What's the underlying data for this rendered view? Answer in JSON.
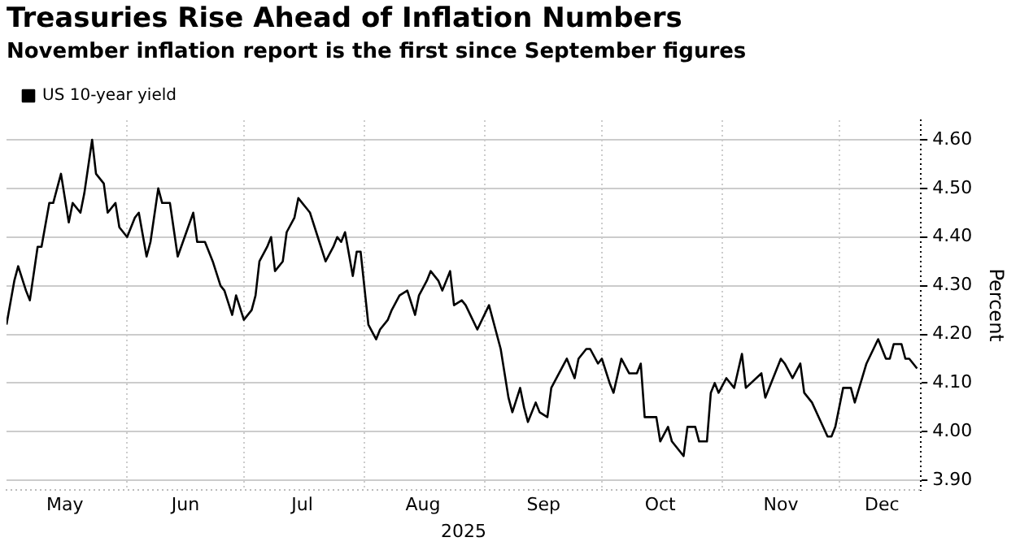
{
  "chart_data": {
    "type": "line",
    "title": "Treasuries Rise Ahead of Inflation Numbers",
    "subtitle": "November inflation report is the first since September figures",
    "xlabel": "2025",
    "ylabel": "Percent",
    "x": [
      "2025-05-01",
      "2025-05-03",
      "2025-05-04",
      "2025-05-06",
      "2025-05-07",
      "2025-05-09",
      "2025-05-10",
      "2025-05-12",
      "2025-05-13",
      "2025-05-15",
      "2025-05-17",
      "2025-05-18",
      "2025-05-20",
      "2025-05-21",
      "2025-05-23",
      "2025-05-24",
      "2025-05-26",
      "2025-05-27",
      "2025-05-29",
      "2025-05-30",
      "2025-06-01",
      "2025-06-03",
      "2025-06-04",
      "2025-06-06",
      "2025-06-07",
      "2025-06-09",
      "2025-06-10",
      "2025-06-12",
      "2025-06-14",
      "2025-06-18",
      "2025-06-19",
      "2025-06-21",
      "2025-06-23",
      "2025-06-25",
      "2025-06-26",
      "2025-06-28",
      "2025-06-29",
      "2025-07-01",
      "2025-07-03",
      "2025-07-04",
      "2025-07-05",
      "2025-07-07",
      "2025-07-08",
      "2025-07-09",
      "2025-07-11",
      "2025-07-12",
      "2025-07-14",
      "2025-07-15",
      "2025-07-17",
      "2025-07-18",
      "2025-07-20",
      "2025-07-22",
      "2025-07-24",
      "2025-07-25",
      "2025-07-26",
      "2025-07-27",
      "2025-07-29",
      "2025-07-30",
      "2025-07-31",
      "2025-08-02",
      "2025-08-04",
      "2025-08-05",
      "2025-08-07",
      "2025-08-08",
      "2025-08-10",
      "2025-08-12",
      "2025-08-14",
      "2025-08-15",
      "2025-08-17",
      "2025-08-18",
      "2025-08-20",
      "2025-08-21",
      "2025-08-23",
      "2025-08-24",
      "2025-08-26",
      "2025-08-27",
      "2025-08-30",
      "2025-09-02",
      "2025-09-05",
      "2025-09-07",
      "2025-09-08",
      "2025-09-10",
      "2025-09-11",
      "2025-09-12",
      "2025-09-14",
      "2025-09-15",
      "2025-09-17",
      "2025-09-18",
      "2025-09-20",
      "2025-09-22",
      "2025-09-24",
      "2025-09-25",
      "2025-09-27",
      "2025-09-28",
      "2025-09-30",
      "2025-10-01",
      "2025-10-03",
      "2025-10-04",
      "2025-10-06",
      "2025-10-08",
      "2025-10-10",
      "2025-10-11",
      "2025-10-12",
      "2025-10-15",
      "2025-10-16",
      "2025-10-18",
      "2025-10-19",
      "2025-10-22",
      "2025-10-23",
      "2025-10-25",
      "2025-10-26",
      "2025-10-28",
      "2025-10-29",
      "2025-10-30",
      "2025-10-31",
      "2025-11-02",
      "2025-11-04",
      "2025-11-06",
      "2025-11-07",
      "2025-11-11",
      "2025-11-12",
      "2025-11-16",
      "2025-11-17",
      "2025-11-19",
      "2025-11-21",
      "2025-11-22",
      "2025-11-24",
      "2025-11-28",
      "2025-11-29",
      "2025-11-30",
      "2025-12-02",
      "2025-12-04",
      "2025-12-05",
      "2025-12-08",
      "2025-12-11",
      "2025-12-13",
      "2025-12-14",
      "2025-12-15",
      "2025-12-17",
      "2025-12-18",
      "2025-12-19",
      "2025-12-21"
    ],
    "series": [
      {
        "name": "US 10-year yield",
        "color": "#000000",
        "values": [
          4.22,
          4.31,
          4.34,
          4.29,
          4.27,
          4.38,
          4.38,
          4.47,
          4.47,
          4.53,
          4.43,
          4.47,
          4.45,
          4.49,
          4.6,
          4.53,
          4.51,
          4.45,
          4.47,
          4.42,
          4.4,
          4.44,
          4.45,
          4.36,
          4.39,
          4.5,
          4.47,
          4.47,
          4.36,
          4.45,
          4.39,
          4.39,
          4.35,
          4.3,
          4.29,
          4.24,
          4.28,
          4.23,
          4.25,
          4.28,
          4.35,
          4.38,
          4.4,
          4.33,
          4.35,
          4.41,
          4.44,
          4.48,
          4.46,
          4.45,
          4.4,
          4.35,
          4.38,
          4.4,
          4.39,
          4.41,
          4.32,
          4.37,
          4.37,
          4.22,
          4.19,
          4.21,
          4.23,
          4.25,
          4.28,
          4.29,
          4.24,
          4.28,
          4.31,
          4.33,
          4.31,
          4.29,
          4.33,
          4.26,
          4.27,
          4.26,
          4.21,
          4.26,
          4.17,
          4.07,
          4.04,
          4.09,
          4.05,
          4.02,
          4.06,
          4.04,
          4.03,
          4.09,
          4.12,
          4.15,
          4.11,
          4.15,
          4.17,
          4.17,
          4.14,
          4.15,
          4.1,
          4.08,
          4.15,
          4.12,
          4.12,
          4.14,
          4.03,
          4.03,
          3.98,
          4.01,
          3.98,
          3.95,
          4.01,
          4.01,
          3.98,
          3.98,
          4.08,
          4.1,
          4.08,
          4.11,
          4.09,
          4.16,
          4.09,
          4.12,
          4.07,
          4.15,
          4.14,
          4.11,
          4.14,
          4.08,
          4.06,
          3.99,
          3.99,
          4.01,
          4.09,
          4.09,
          4.06,
          4.14,
          4.19,
          4.15,
          4.15,
          4.18,
          4.18,
          4.15,
          4.15,
          4.13
        ]
      }
    ],
    "xlim": [
      "2025-05-01",
      "2025-12-22"
    ],
    "xticks": [
      {
        "value": "2025-05-16",
        "label": "May"
      },
      {
        "value": "2025-06-01",
        "label": null
      },
      {
        "value": "2025-06-16",
        "label": "Jun"
      },
      {
        "value": "2025-07-01",
        "label": null
      },
      {
        "value": "2025-07-16",
        "label": "Jul"
      },
      {
        "value": "2025-08-01",
        "label": null
      },
      {
        "value": "2025-08-16",
        "label": "Aug"
      },
      {
        "value": "2025-09-01",
        "label": null
      },
      {
        "value": "2025-09-16",
        "label": "Sep"
      },
      {
        "value": "2025-10-01",
        "label": null
      },
      {
        "value": "2025-10-16",
        "label": "Oct"
      },
      {
        "value": "2025-11-01",
        "label": null
      },
      {
        "value": "2025-11-16",
        "label": "Nov"
      },
      {
        "value": "2025-12-01",
        "label": null
      },
      {
        "value": "2025-12-12",
        "label": "Dec"
      }
    ],
    "ylim": [
      3.88,
      4.64
    ],
    "yticks": [
      {
        "value": 3.9,
        "label": "3.90"
      },
      {
        "value": 4.0,
        "label": "4.00"
      },
      {
        "value": 4.1,
        "label": "4.10"
      },
      {
        "value": 4.2,
        "label": "4.20"
      },
      {
        "value": 4.3,
        "label": "4.30"
      },
      {
        "value": 4.4,
        "label": "4.40"
      },
      {
        "value": 4.5,
        "label": "4.50"
      },
      {
        "value": 4.6,
        "label": "4.60"
      }
    ],
    "grid": true,
    "legend": "top left",
    "marker": "none",
    "line_style": "solid"
  }
}
